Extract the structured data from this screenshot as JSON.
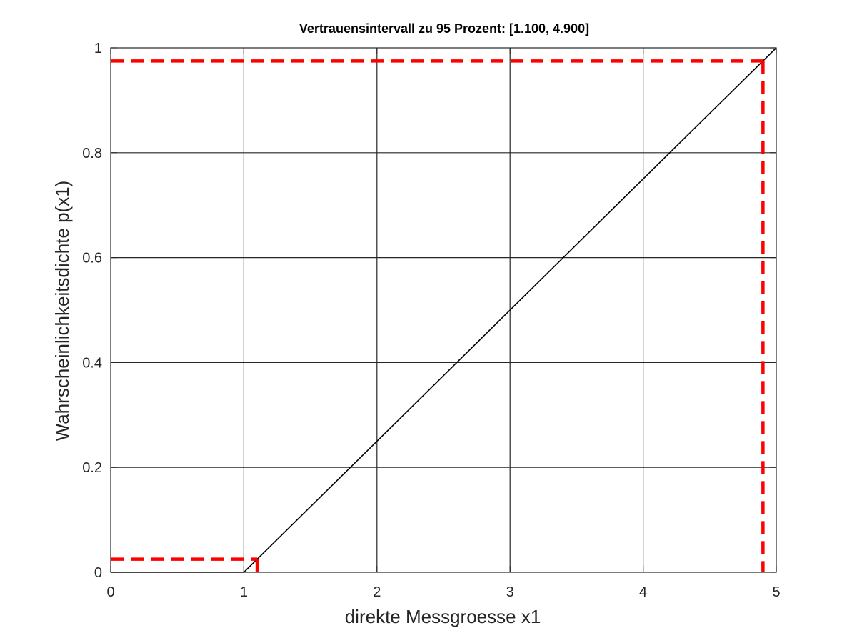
{
  "chart_data": {
    "type": "line",
    "title": "Vertrauensintervall zu 95 Prozent: [1.100, 4.900]",
    "xlabel": "direkte Messgroesse x1",
    "ylabel": "Wahrscheinlichkeitsdichte p(x1)",
    "xlim": [
      0,
      5
    ],
    "ylim": [
      0,
      1
    ],
    "xticks": [
      0,
      1,
      2,
      3,
      4,
      5
    ],
    "xtick_labels": [
      "0",
      "1",
      "2",
      "3",
      "4",
      "5"
    ],
    "yticks": [
      0,
      0.2,
      0.4,
      0.6,
      0.8,
      1
    ],
    "ytick_labels": [
      "0",
      "0.2",
      "0.4",
      "0.6",
      "0.8",
      "1"
    ],
    "grid": true,
    "series": [
      {
        "x": [
          0,
          1,
          5
        ],
        "y": [
          0,
          0,
          1
        ],
        "color": "#000000",
        "style": "solid"
      }
    ],
    "markers": [
      {
        "type": "interval-lower",
        "x": 1.1,
        "y": 0.025,
        "color": "#ff0000",
        "style": "dashed"
      },
      {
        "type": "interval-upper",
        "x": 4.9,
        "y": 0.975,
        "color": "#ff0000",
        "style": "dashed"
      }
    ]
  }
}
